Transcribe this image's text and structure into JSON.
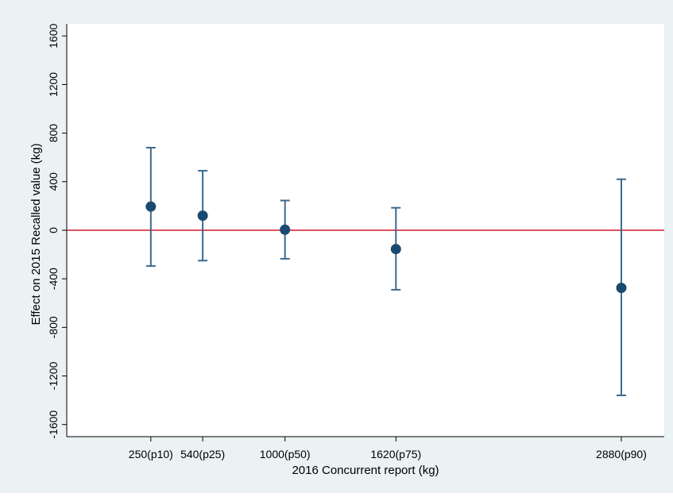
{
  "chart_data": {
    "type": "scatter",
    "title": "",
    "xlabel": "2016 Concurrent report (kg)",
    "ylabel": "Effect on 2015 Recalled value (kg)",
    "ylim": [
      -1700,
      1700
    ],
    "xlim": [
      -220,
      3120
    ],
    "yticks": [
      -1600,
      -1200,
      -800,
      -400,
      0,
      400,
      800,
      1200,
      1600
    ],
    "ytick_labels": [
      "-1600",
      "-1200",
      "-800",
      "-400",
      "0",
      "400",
      "800",
      "1200",
      "1600"
    ],
    "xticks": [
      250,
      540,
      1000,
      1620,
      2880
    ],
    "xtick_labels": [
      "250(p10)",
      "540(p25)",
      "1000(p50)",
      "1620(p75)",
      "2880(p90)"
    ],
    "reference_line": {
      "y": 0,
      "color": "#d11a2a"
    },
    "grid": false,
    "points": [
      {
        "x": 250,
        "y": 195,
        "ci_low": -295,
        "ci_high": 680
      },
      {
        "x": 540,
        "y": 120,
        "ci_low": -250,
        "ci_high": 490
      },
      {
        "x": 1000,
        "y": 5,
        "ci_low": -235,
        "ci_high": 245
      },
      {
        "x": 1620,
        "y": -155,
        "ci_low": -490,
        "ci_high": 185
      },
      {
        "x": 2880,
        "y": -475,
        "ci_low": -1360,
        "ci_high": 420
      }
    ],
    "colors": {
      "outer_background": "#eaf2f3",
      "plot_background": "#ffffff",
      "marker": "#1a4a6f",
      "error_bar": "#3b6a8e",
      "axis": "#000000"
    }
  }
}
